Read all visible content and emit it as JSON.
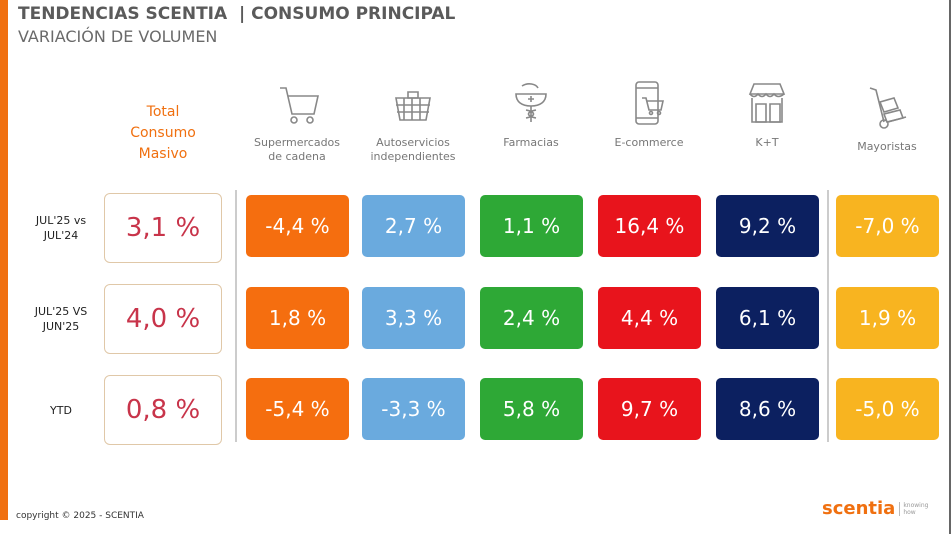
{
  "header": {
    "title": "TENDENCIAS SCENTIA  | CONSUMO PRINCIPAL",
    "subtitle": "VARIACIÓN DE VOLUMEN"
  },
  "total_header": [
    "Total",
    "Consumo",
    "Masivo"
  ],
  "columns": [
    {
      "label": "Supermercados de cadena",
      "icon": "shopping-cart-icon",
      "color": "#f56e0f"
    },
    {
      "label": "Autoservicios independientes",
      "icon": "basket-icon",
      "color": "#6aaade"
    },
    {
      "label": "Farmacias",
      "icon": "pharmacy-icon",
      "color": "#2ea836"
    },
    {
      "label": "E-commerce",
      "icon": "phone-cart-icon",
      "color": "#e8141c"
    },
    {
      "label": "K+T",
      "icon": "store-icon",
      "color": "#0c2060"
    },
    {
      "label": "Mayoristas",
      "icon": "hand-truck-icon",
      "color": "#f8b420"
    }
  ],
  "rows": [
    {
      "label": "JUL'25 vs JUL'24",
      "total": "3,1 %",
      "values": [
        "-4,4 %",
        "2,7 %",
        "1,1 %",
        "16,4 %",
        "9,2 %",
        "-7,0 %"
      ]
    },
    {
      "label": "JUL'25 VS JUN'25",
      "total": "4,0 %",
      "values": [
        "1,8 %",
        "3,3 %",
        "2,4 %",
        "4,4 %",
        "6,1 %",
        "1,9 %"
      ]
    },
    {
      "label": "YTD",
      "total": "0,8 %",
      "values": [
        "-5,4 %",
        "-3,3 %",
        "5,8 %",
        "9,7 %",
        "8,6 %",
        "-5,0 %"
      ]
    }
  ],
  "footer": {
    "copyright": "copyright © 2025 - SCENTIA",
    "logo": "scentia",
    "logo_tag": "knowing how"
  }
}
